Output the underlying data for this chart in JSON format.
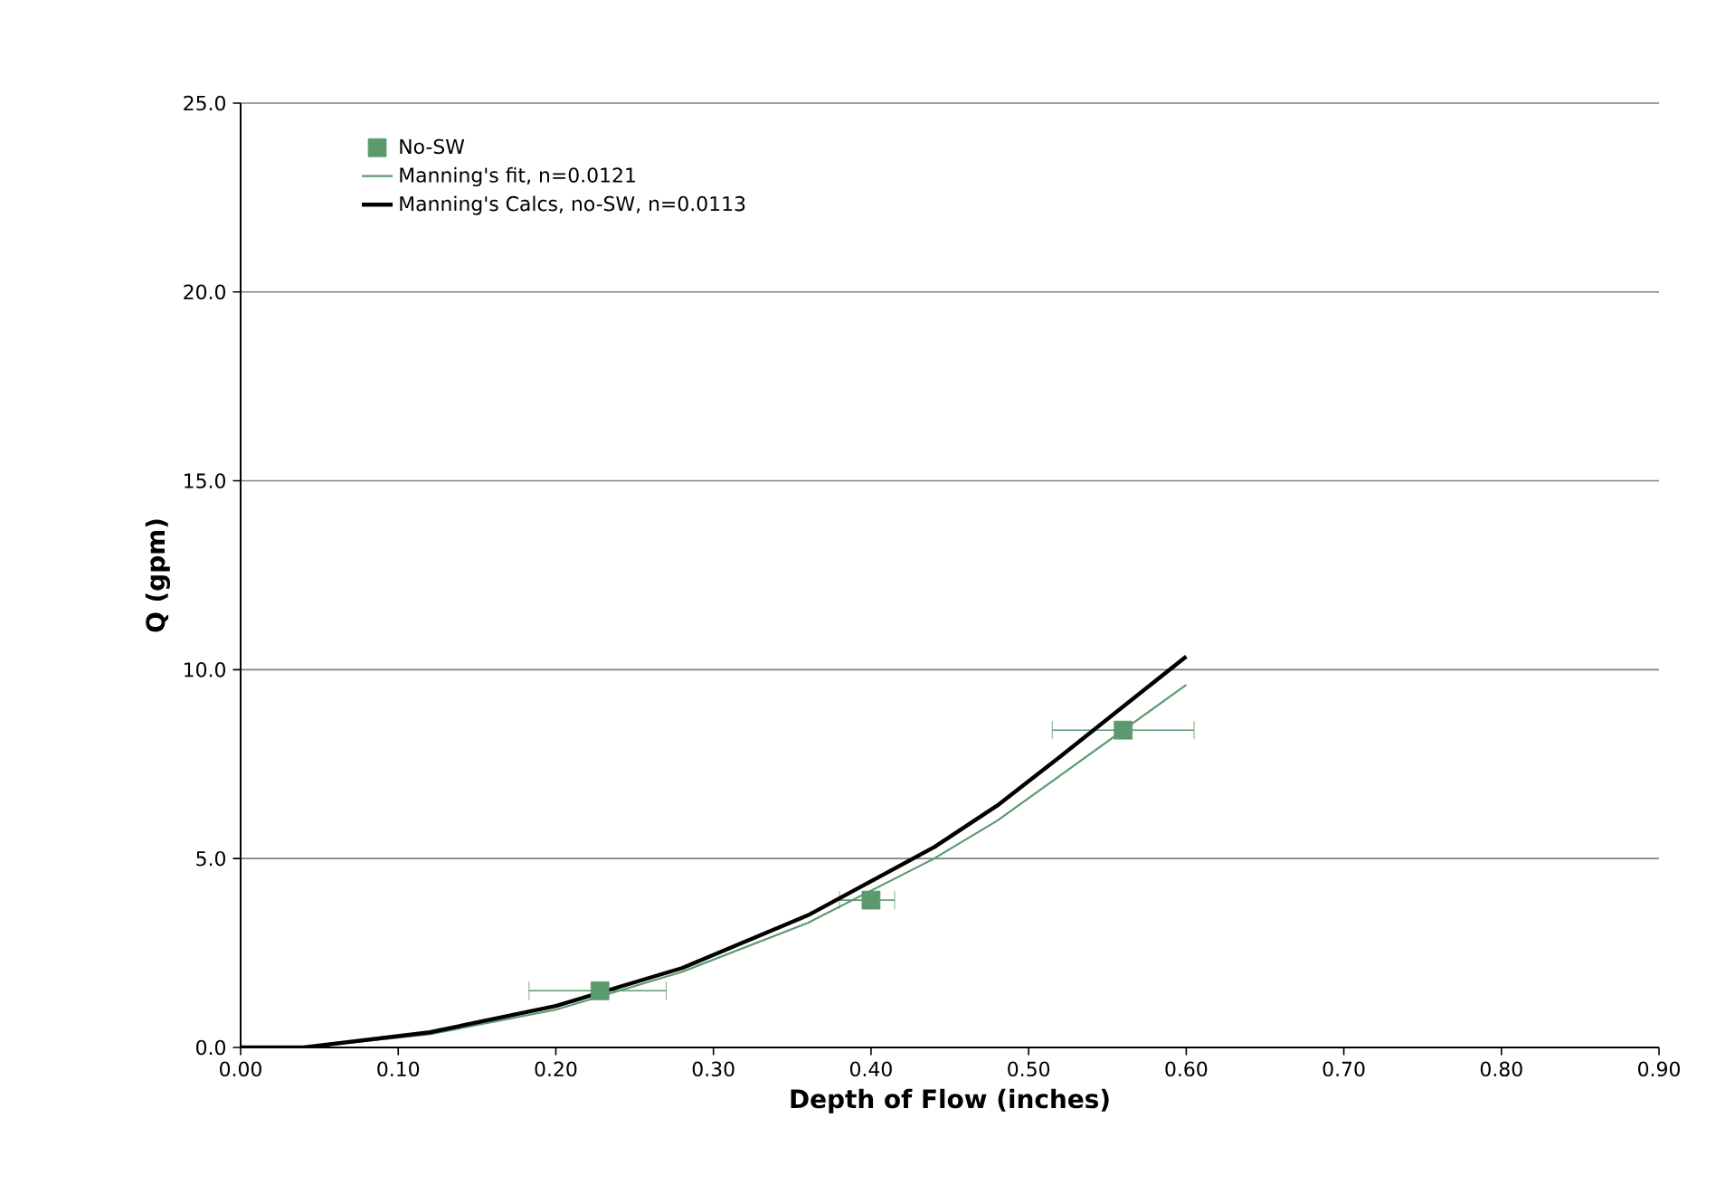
{
  "chart_data": {
    "type": "line",
    "xlabel": "Depth of Flow (inches)",
    "ylabel": "Q (gpm)",
    "xlim": [
      0,
      0.9
    ],
    "ylim": [
      0,
      25
    ],
    "xticks": [
      {
        "value": 0,
        "label": "0.00"
      },
      {
        "value": 0.1,
        "label": "0.10"
      },
      {
        "value": 0.2,
        "label": "0.20"
      },
      {
        "value": 0.3,
        "label": "0.30"
      },
      {
        "value": 0.4,
        "label": "0.40"
      },
      {
        "value": 0.5,
        "label": "0.50"
      },
      {
        "value": 0.6,
        "label": "0.60"
      },
      {
        "value": 0.7,
        "label": "0.70"
      },
      {
        "value": 0.8,
        "label": "0.80"
      },
      {
        "value": 0.9,
        "label": "0.90"
      }
    ],
    "yticks": [
      {
        "value": 0,
        "label": "0.0"
      },
      {
        "value": 5,
        "label": "5.0"
      },
      {
        "value": 10,
        "label": "10.0"
      },
      {
        "value": 15,
        "label": "15.0"
      },
      {
        "value": 20,
        "label": "20.0"
      },
      {
        "value": 25,
        "label": "25.0"
      }
    ],
    "grid": "y",
    "legend": "top left",
    "series": [
      {
        "name": "No-SW",
        "type": "scatter",
        "marker": "square",
        "color": "#5a9a6e",
        "x": [
          0.228,
          0.4,
          0.56
        ],
        "values": [
          1.5,
          3.9,
          8.4
        ],
        "xerrors": [
          [
            0.183,
            0.27
          ],
          [
            0.38,
            0.415
          ],
          [
            0.515,
            0.605
          ]
        ]
      },
      {
        "name": "Manning's fit, n=0.0121",
        "marker": "none",
        "color": "#5a9a6e",
        "x": [
          0,
          0.04,
          0.12,
          0.2,
          0.28,
          0.36,
          0.44,
          0.48,
          0.52,
          0.6
        ],
        "values": [
          0,
          0,
          0.35,
          1.0,
          2.0,
          3.3,
          5.0,
          6.0,
          7.2,
          9.6
        ]
      },
      {
        "name": "Manning's Calcs, no-SW, n=0.0113",
        "marker": "none",
        "color": "#000000",
        "x": [
          0,
          0.04,
          0.12,
          0.2,
          0.28,
          0.36,
          0.44,
          0.48,
          0.52,
          0.6
        ],
        "values": [
          0,
          0,
          0.4,
          1.1,
          2.1,
          3.5,
          5.3,
          6.4,
          7.7,
          10.35
        ]
      }
    ]
  }
}
